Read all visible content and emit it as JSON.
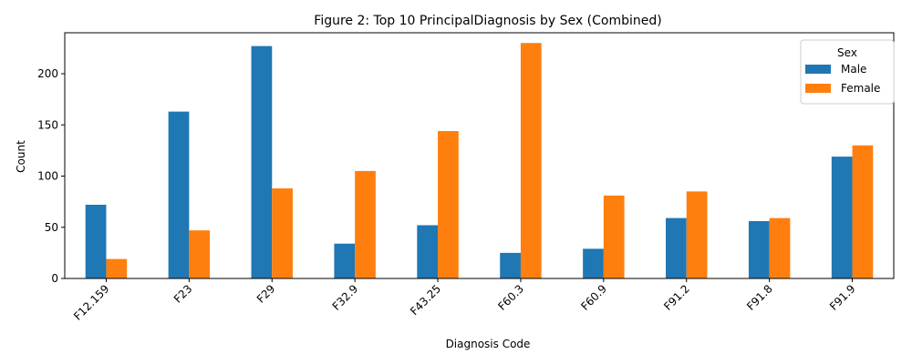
{
  "chart_data": {
    "type": "bar",
    "title": "Figure 2: Top 10 PrincipalDiagnosis by Sex (Combined)",
    "xlabel": "Diagnosis Code",
    "ylabel": "Count",
    "categories": [
      "F12.159",
      "F23",
      "F29",
      "F32.9",
      "F43.25",
      "F60.3",
      "F60.9",
      "F91.2",
      "F91.8",
      "F91.9"
    ],
    "series": [
      {
        "name": "Male",
        "color": "#1f77b4",
        "values": [
          72,
          163,
          227,
          34,
          52,
          25,
          29,
          59,
          56,
          119
        ]
      },
      {
        "name": "Female",
        "color": "#ff7f0e",
        "values": [
          19,
          47,
          88,
          105,
          144,
          230,
          81,
          85,
          59,
          130
        ]
      }
    ],
    "ylim": [
      0,
      240
    ],
    "yticks": [
      0,
      50,
      100,
      150,
      200
    ],
    "legend": {
      "title": "Sex",
      "position": "top-right"
    },
    "grid": false
  }
}
